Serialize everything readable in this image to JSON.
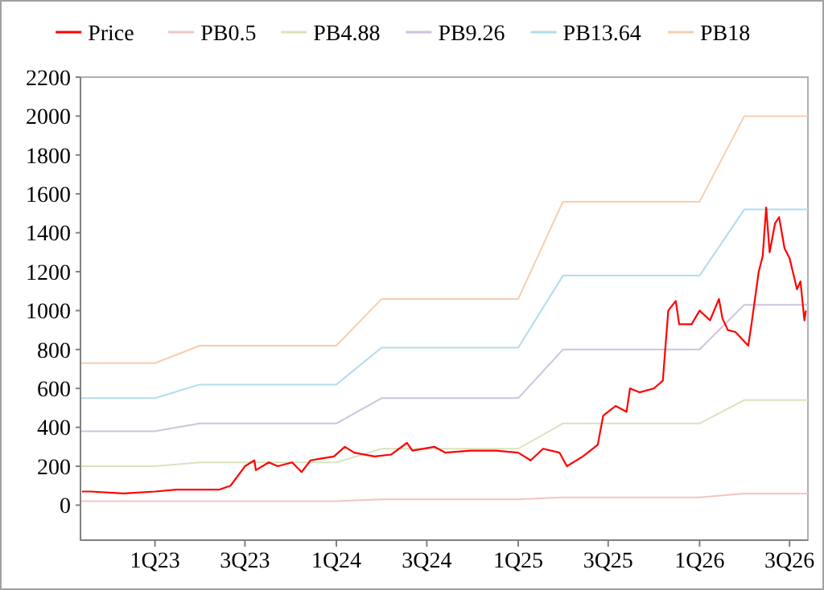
{
  "chart_data": {
    "type": "line",
    "legend": "top",
    "grid": false,
    "xlim": [
      "2022-08-04",
      "2026-08-07"
    ],
    "ylim": [
      -180,
      2200
    ],
    "xticks": [
      {
        "value": "2023-01-01",
        "label": "1Q23"
      },
      {
        "value": "2023-07-01",
        "label": "3Q23"
      },
      {
        "value": "2024-01-01",
        "label": "1Q24"
      },
      {
        "value": "2024-07-01",
        "label": "3Q24"
      },
      {
        "value": "2025-01-01",
        "label": "1Q25"
      },
      {
        "value": "2025-07-01",
        "label": "3Q25"
      },
      {
        "value": "2026-01-01",
        "label": "1Q26"
      },
      {
        "value": "2026-07-01",
        "label": "3Q26"
      }
    ],
    "yticks": [
      0,
      200,
      400,
      600,
      800,
      1000,
      1200,
      1400,
      1600,
      1800,
      2000,
      2200
    ],
    "series": [
      {
        "name": "Price",
        "color": "#ff0000",
        "x": [
          "2022-08-07",
          "2022-08-25",
          "2022-10-30",
          "2023-01-01",
          "2023-02-13",
          "2023-03-10",
          "2023-04-09",
          "2023-05-11",
          "2023-06-02",
          "2023-07-01",
          "2023-07-20",
          "2023-07-23",
          "2023-08-18",
          "2023-09-05",
          "2023-10-04",
          "2023-10-23",
          "2023-11-10",
          "2023-12-02",
          "2023-12-27",
          "2024-01-18",
          "2024-02-06",
          "2024-03-18",
          "2024-04-20",
          "2024-05-22",
          "2024-06-02",
          "2024-07-16",
          "2024-08-07",
          "2024-09-27",
          "2024-11-17",
          "2025-01-01",
          "2025-01-26",
          "2025-02-20",
          "2025-03-25",
          "2025-04-09",
          "2025-05-11",
          "2025-06-10",
          "2025-06-21",
          "2025-07-16",
          "2025-08-07",
          "2025-08-14",
          "2025-09-02",
          "2025-10-01",
          "2025-10-19",
          "2025-10-30",
          "2025-11-14",
          "2025-11-21",
          "2025-12-16",
          "2026-01-01",
          "2026-01-22",
          "2026-02-09",
          "2026-02-16",
          "2026-02-27",
          "2026-03-14",
          "2026-04-09",
          "2026-04-16",
          "2026-04-30",
          "2026-05-08",
          "2026-05-15",
          "2026-05-22",
          "2026-06-02",
          "2026-06-10",
          "2026-06-21",
          "2026-07-01",
          "2026-07-16",
          "2026-07-23",
          "2026-07-31",
          "2026-08-03"
        ],
        "values": [
          70,
          70,
          60,
          70,
          80,
          80,
          80,
          80,
          100,
          200,
          230,
          180,
          220,
          200,
          220,
          170,
          230,
          240,
          250,
          300,
          270,
          250,
          260,
          320,
          280,
          300,
          270,
          280,
          280,
          270,
          230,
          290,
          270,
          200,
          250,
          310,
          460,
          510,
          480,
          600,
          580,
          600,
          640,
          1000,
          1050,
          930,
          930,
          1000,
          950,
          1060,
          960,
          900,
          890,
          820,
          940,
          1200,
          1280,
          1530,
          1300,
          1450,
          1480,
          1320,
          1270,
          1110,
          1150,
          950,
          1000
        ]
      },
      {
        "name": "PB0.5",
        "color": "#f2c4c4",
        "x": [
          "2022-08-04",
          "2023-01-01",
          "2023-04-01",
          "2024-01-01",
          "2024-04-01",
          "2025-01-01",
          "2025-04-01",
          "2026-01-01",
          "2026-04-01",
          "2026-08-07"
        ],
        "values": [
          20,
          20,
          20,
          20,
          30,
          30,
          40,
          40,
          60,
          60
        ]
      },
      {
        "name": "PB4.88",
        "color": "#d6e4bd",
        "x": [
          "2022-08-04",
          "2023-01-01",
          "2023-04-01",
          "2024-01-01",
          "2024-04-01",
          "2025-01-01",
          "2025-04-01",
          "2026-01-01",
          "2026-04-01",
          "2026-08-07"
        ],
        "values": [
          200,
          200,
          220,
          220,
          290,
          290,
          420,
          420,
          540,
          540
        ]
      },
      {
        "name": "PB9.26",
        "color": "#cdc2df",
        "x": [
          "2022-08-04",
          "2023-01-01",
          "2023-04-01",
          "2024-01-01",
          "2024-04-01",
          "2025-01-01",
          "2025-04-01",
          "2026-01-01",
          "2026-04-01",
          "2026-08-07"
        ],
        "values": [
          380,
          380,
          420,
          420,
          550,
          550,
          800,
          800,
          1030,
          1030
        ]
      },
      {
        "name": "PB13.64",
        "color": "#b2dbee",
        "x": [
          "2022-08-04",
          "2023-01-01",
          "2023-04-01",
          "2024-01-01",
          "2024-04-01",
          "2025-01-01",
          "2025-04-01",
          "2026-01-01",
          "2026-04-01",
          "2026-08-07"
        ],
        "values": [
          550,
          550,
          620,
          620,
          810,
          810,
          1180,
          1180,
          1520,
          1520
        ]
      },
      {
        "name": "PB18",
        "color": "#f8cdae",
        "x": [
          "2022-08-04",
          "2023-01-01",
          "2023-04-01",
          "2024-01-01",
          "2024-04-01",
          "2025-01-01",
          "2025-04-01",
          "2026-01-01",
          "2026-04-01",
          "2026-08-07"
        ],
        "values": [
          730,
          730,
          820,
          820,
          1060,
          1060,
          1560,
          1560,
          2000,
          2000
        ]
      }
    ]
  }
}
